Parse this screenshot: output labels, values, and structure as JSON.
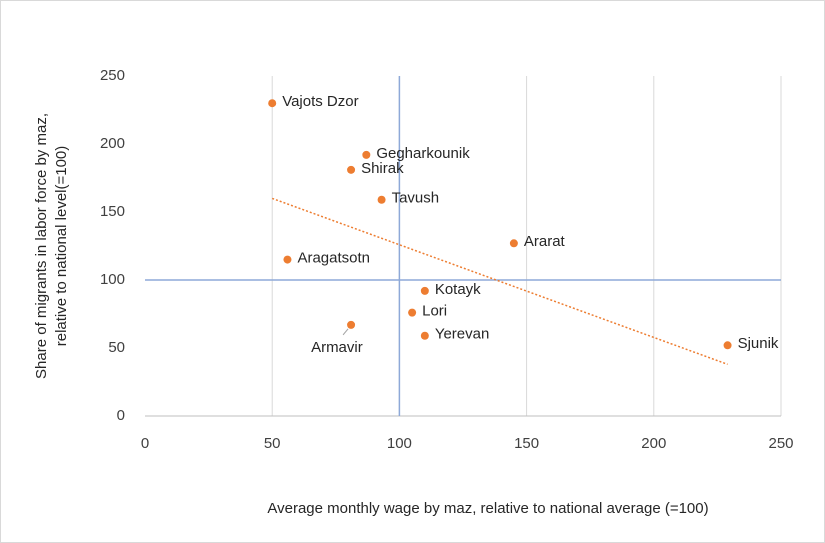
{
  "chart_data": {
    "type": "scatter",
    "xlabel": "Average monthly wage by maz, relative to national average (=100)",
    "ylabel": [
      "Share of migrants in labor force by maz,",
      "relative to national level(=100)"
    ],
    "labels": [
      "Vajots Dzor",
      "Gegharkounik",
      "Shirak",
      "Tavush",
      "Ararat",
      "Aragatsotn",
      "Kotayk",
      "Lori",
      "Yerevan",
      "Armavir",
      "Sjunik"
    ],
    "x": [
      50,
      87,
      81,
      93,
      145,
      56,
      110,
      105,
      110,
      81,
      229
    ],
    "y": [
      230,
      192,
      181,
      159,
      127,
      115,
      92,
      76,
      59,
      67,
      52
    ],
    "color": "#ed7d31",
    "trendline": {
      "x": [
        50,
        229
      ],
      "y": [
        160,
        38
      ],
      "color": "#ed7d31"
    },
    "reference_lines": {
      "x": 100,
      "y": 100,
      "color": "#8ea9d8"
    },
    "xlim": [
      0,
      250
    ],
    "xticks": [
      0,
      50,
      100,
      150,
      200,
      250
    ],
    "ylim": [
      0,
      250
    ],
    "yticks": [
      0,
      50,
      100,
      150,
      200,
      250
    ],
    "grid": "x"
  }
}
